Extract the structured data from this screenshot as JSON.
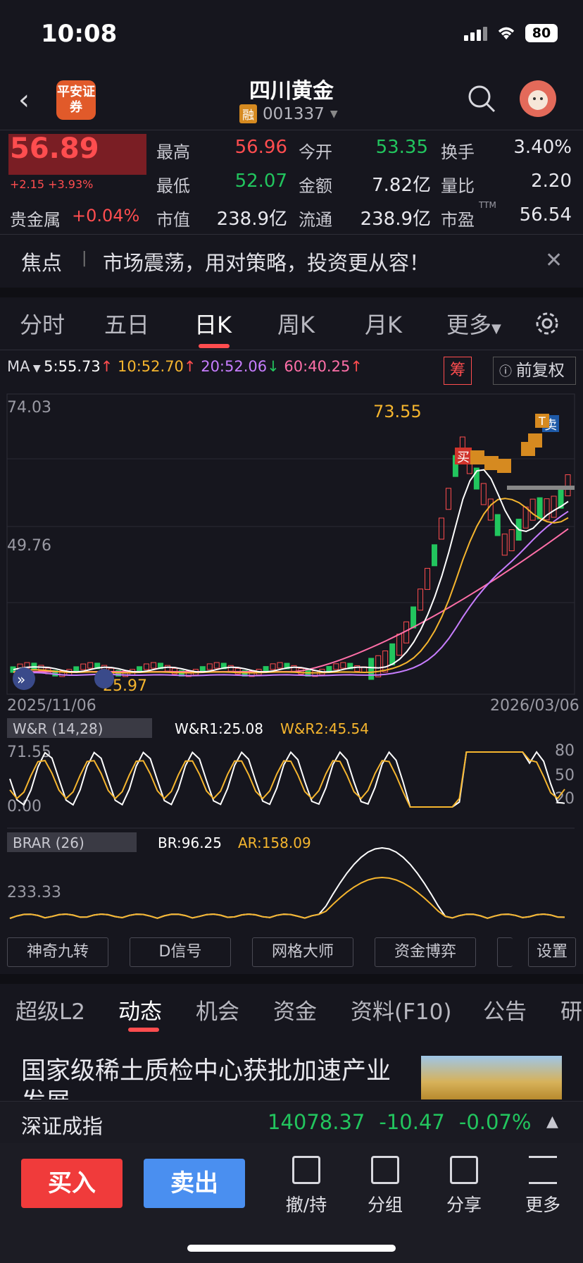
{
  "status_bar": {
    "time": "10:08",
    "battery": "80"
  },
  "header": {
    "broker": "平安证券",
    "stock_name": "四川黄金",
    "rong": "融",
    "stock_code": "001337"
  },
  "quote": {
    "price": "56.89",
    "change": "+2.15 +3.93%",
    "metal_label": "贵金属",
    "metal_change": "+0.04%",
    "fields": [
      {
        "label": "最高",
        "value": "56.96",
        "color": "red"
      },
      {
        "label": "今开",
        "value": "53.35",
        "color": "green"
      },
      {
        "label": "换手",
        "value": "3.40%",
        "color": "white"
      },
      {
        "label": "最低",
        "value": "52.07",
        "color": "green"
      },
      {
        "label": "金额",
        "value": "7.82亿",
        "color": "white"
      },
      {
        "label": "量比",
        "value": "2.20",
        "color": "white"
      },
      {
        "label": "市值",
        "value": "238.9亿",
        "color": "white"
      },
      {
        "label": "流通",
        "value": "238.9亿",
        "color": "white"
      },
      {
        "label": "市盈",
        "value": "56.54",
        "color": "white"
      }
    ],
    "ttm": "TTM"
  },
  "focus": {
    "title": "焦点",
    "separator": "|",
    "text": "市场震荡，用对策略，投资更从容！"
  },
  "chart_tabs": [
    "分时",
    "五日",
    "日K",
    "周K",
    "月K",
    "更多"
  ],
  "ma": {
    "label": "MA",
    "ma5": "5:55.73",
    "ma10": "10:52.70",
    "ma20": "20:52.06",
    "ma60": "60:40.25",
    "chou": "筹",
    "fq": "前复权"
  },
  "kline": {
    "y_top": "74.03",
    "y_mid": "49.76",
    "peak": "73.55",
    "low": "25.97",
    "date_start": "2025/11/06",
    "date_end": "2026/03/06",
    "sell_tag": "卖",
    "buy_tag": "买",
    "t_tag": "T"
  },
  "wr": {
    "name": "W&R (14,28)",
    "r1": "W&R1:25.08",
    "r2": "W&R2:45.54",
    "y_top": "71.55",
    "y_bottom": "0.00",
    "lv80": "80",
    "lv50": "50",
    "lv20": "20"
  },
  "brar": {
    "name": "BRAR (26)",
    "br": "BR:96.25",
    "ar": "AR:158.09",
    "y_label": "233.33"
  },
  "tools": [
    "神奇九转",
    "D信号",
    "网格大师",
    "资金博弈",
    "设置"
  ],
  "info_tabs": [
    "超级L2",
    "动态",
    "机会",
    "资金",
    "资料(F10)",
    "公告",
    "研"
  ],
  "news": {
    "title": "国家级稀土质检中心获批加速产业发展"
  },
  "index": {
    "name": "深证成指",
    "value": "14078.37",
    "change": "-10.47",
    "pct": "-0.07%"
  },
  "bottom": {
    "buy": "买入",
    "sell": "卖出",
    "actions": [
      "撤/持",
      "分组",
      "分享",
      "更多"
    ]
  },
  "colors": {
    "up": "#ff4d4f",
    "down": "#22c55e",
    "ma5": "#ffffff",
    "ma10": "#f5b52e",
    "ma20": "#c77dff",
    "ma60": "#ff6fa8"
  }
}
